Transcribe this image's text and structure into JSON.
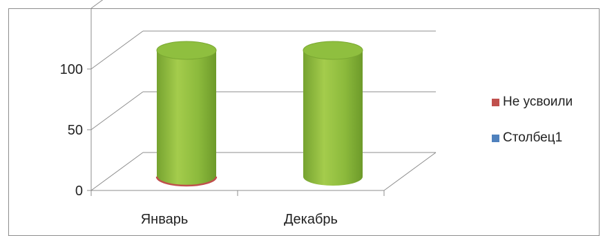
{
  "chart_data": {
    "type": "bar",
    "style": "3d-cylinder",
    "categories": [
      "Январь",
      "Декабрь"
    ],
    "series": [
      {
        "name": "Не усвоили",
        "values": [
          1,
          0
        ],
        "color": "#c0504d"
      },
      {
        "name": "Столбец1",
        "values": [
          0,
          0
        ],
        "color": "#4f81bd"
      },
      {
        "name": "",
        "values": [
          100,
          100
        ],
        "color": "#9bbb59"
      }
    ],
    "y_ticks": [
      "0",
      "50",
      "100"
    ],
    "ylim": [
      0,
      150
    ],
    "grid": true,
    "legend_position": "right"
  }
}
